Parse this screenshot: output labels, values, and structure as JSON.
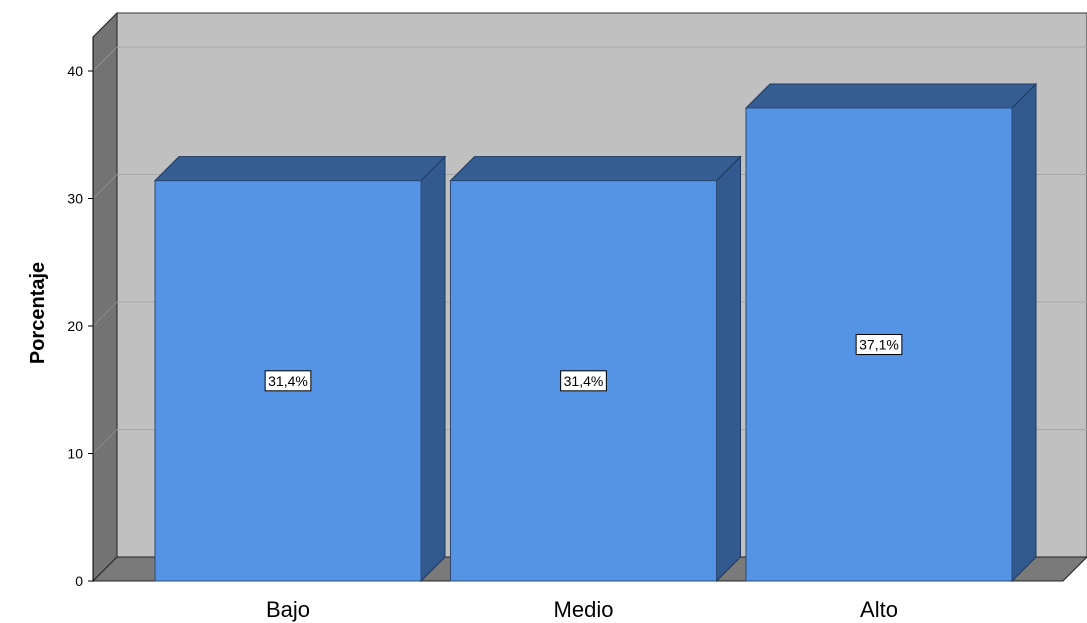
{
  "chart_data": {
    "type": "bar",
    "categories": [
      "Bajo",
      "Medio",
      "Alto"
    ],
    "values": [
      31.4,
      31.4,
      37.1
    ],
    "data_labels": [
      "31,4%",
      "31,4%",
      "37,1%"
    ],
    "ylabel": "Porcentaje",
    "xlabel": "",
    "ylim": [
      0,
      40
    ],
    "yticks": [
      0,
      10,
      20,
      30,
      40
    ],
    "grid": true,
    "legend": "none"
  },
  "colors": {
    "bar_front": "#5594e4",
    "bar_side": "#335a8e",
    "bar_top": "#365e92",
    "wall_back": "#c0c0c0",
    "wall_left": "#737373",
    "floor": "#7a7a7a",
    "gridline": "#a8a8a8"
  }
}
